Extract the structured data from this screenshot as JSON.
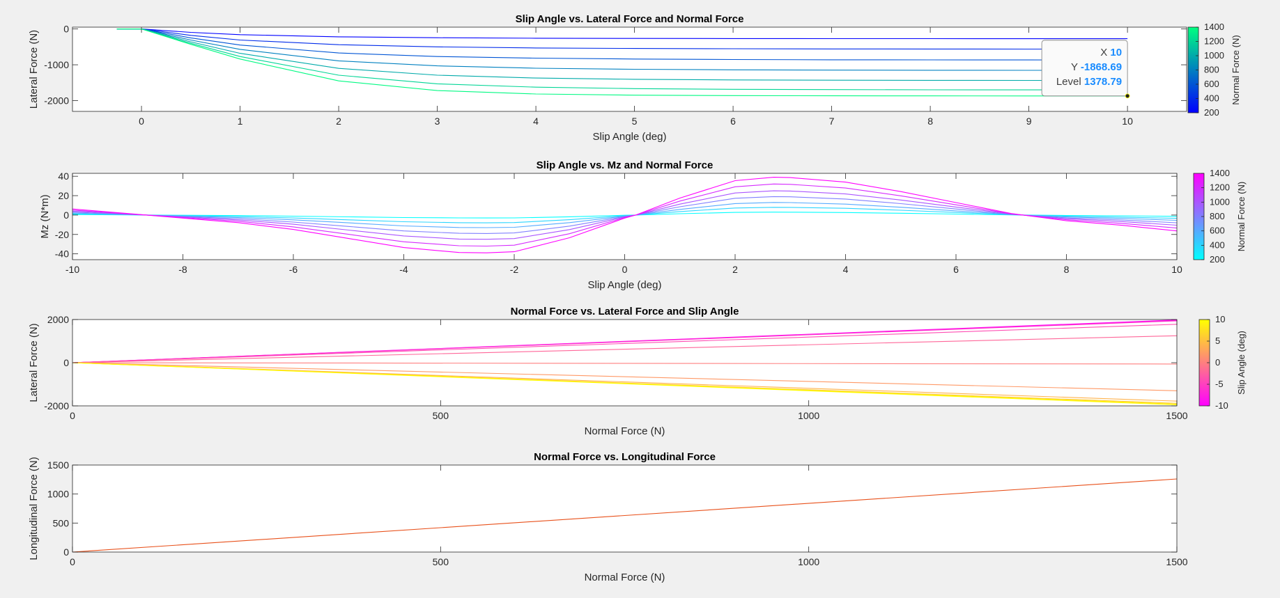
{
  "window": {
    "background": "#f0f0f0"
  },
  "chart_data": [
    {
      "type": "line",
      "title": "Slip Angle vs. Lateral Force and Normal Force",
      "xlabel": "Slip Angle (deg)",
      "ylabel": "Lateral Force (N)",
      "xlim": [
        -0.7,
        10.6
      ],
      "ylim": [
        -2300,
        50
      ],
      "xticks": [
        0,
        1,
        2,
        3,
        4,
        5,
        6,
        7,
        8,
        9,
        10
      ],
      "yticks": [
        0,
        -1000,
        -2000
      ],
      "colorbar": {
        "label": "Normal Force (N)",
        "range": [
          200,
          1400
        ],
        "ticks": [
          1400,
          1200,
          1000,
          800,
          600,
          400,
          200
        ],
        "colors": [
          "#00ff80",
          "#0000ff"
        ]
      },
      "series": [
        {
          "level": 200,
          "x": [
            -0.25,
            0,
            0.5,
            1,
            2,
            3,
            4,
            5,
            6,
            7,
            8,
            9,
            10
          ],
          "y": [
            0,
            0,
            -95,
            -160,
            -220,
            -245,
            -258,
            -264,
            -268,
            -270,
            -271,
            -272,
            -272
          ]
        },
        {
          "level": 400,
          "x": [
            -0.25,
            0,
            0.5,
            1,
            2,
            3,
            4,
            5,
            6,
            7,
            8,
            9,
            10
          ],
          "y": [
            0,
            0,
            -180,
            -310,
            -440,
            -500,
            -530,
            -545,
            -553,
            -557,
            -560,
            -561,
            -562
          ]
        },
        {
          "level": 600,
          "x": [
            -0.25,
            0,
            0.5,
            1,
            2,
            3,
            4,
            5,
            6,
            7,
            8,
            9,
            10
          ],
          "y": [
            0,
            0,
            -250,
            -450,
            -670,
            -770,
            -815,
            -840,
            -853,
            -860,
            -863,
            -865,
            -866
          ]
        },
        {
          "level": 800,
          "x": [
            -0.25,
            0,
            0.5,
            1,
            2,
            3,
            4,
            5,
            6,
            7,
            8,
            9,
            10
          ],
          "y": [
            0,
            0,
            -310,
            -570,
            -890,
            -1030,
            -1095,
            -1125,
            -1140,
            -1148,
            -1152,
            -1154,
            -1155
          ]
        },
        {
          "level": 1000,
          "x": [
            -0.25,
            0,
            0.5,
            1,
            2,
            3,
            4,
            5,
            6,
            7,
            8,
            9,
            10
          ],
          "y": [
            0,
            0,
            -360,
            -680,
            -1100,
            -1290,
            -1370,
            -1405,
            -1422,
            -1430,
            -1434,
            -1436,
            -1437
          ]
        },
        {
          "level": 1200,
          "x": [
            -0.25,
            0,
            0.5,
            1,
            2,
            3,
            4,
            5,
            6,
            7,
            8,
            9,
            10
          ],
          "y": [
            0,
            0,
            -400,
            -770,
            -1290,
            -1530,
            -1625,
            -1665,
            -1685,
            -1693,
            -1697,
            -1699,
            -1700
          ]
        },
        {
          "level": 1378.79,
          "x": [
            -0.25,
            0,
            0.5,
            1,
            2,
            3,
            4,
            5,
            6,
            7,
            8,
            9,
            10
          ],
          "y": [
            0,
            0,
            -430,
            -840,
            -1450,
            -1720,
            -1815,
            -1848,
            -1860,
            -1865,
            -1867,
            -1868,
            -1868.69
          ]
        }
      ],
      "datatip": {
        "x_label": "X",
        "x_value": "10",
        "y_label": "Y",
        "y_value": "-1868.69",
        "level_label": "Level",
        "level_value": "1378.79",
        "point": [
          10,
          -1868.69
        ]
      }
    },
    {
      "type": "line",
      "title": "Slip Angle vs. Mz and Normal Force",
      "xlabel": "Slip Angle (deg)",
      "ylabel": "Mz (N*m)",
      "xlim": [
        -10,
        10
      ],
      "ylim": [
        -46,
        43
      ],
      "xticks": [
        -10,
        -8,
        -6,
        -4,
        -2,
        0,
        2,
        4,
        6,
        8,
        10
      ],
      "yticks": [
        40,
        20,
        0,
        -20,
        -40
      ],
      "colorbar": {
        "label": "Normal Force (N)",
        "range": [
          200,
          1400
        ],
        "ticks": [
          1400,
          1200,
          1000,
          800,
          600,
          400,
          200
        ],
        "colors": [
          "#ff00ff",
          "#00ffff"
        ]
      },
      "shape": {
        "x": [
          -10,
          -9,
          -8,
          -7,
          -6,
          -5,
          -4,
          -3,
          -2.5,
          -2,
          -1,
          0,
          0.2,
          1,
          2,
          2.7,
          3,
          4,
          5,
          6,
          7,
          8,
          9,
          10
        ],
        "y": [
          0.16,
          0.04,
          -0.08,
          -0.2,
          -0.38,
          -0.62,
          -0.86,
          -0.99,
          -1.0,
          -0.97,
          -0.6,
          -0.08,
          0,
          0.45,
          0.91,
          1.0,
          0.99,
          0.87,
          0.62,
          0.33,
          0.04,
          -0.15,
          -0.27,
          -0.42
        ]
      },
      "series": [
        {
          "level": 200,
          "amplitude": 3
        },
        {
          "level": 400,
          "amplitude": 8
        },
        {
          "level": 600,
          "amplitude": 13
        },
        {
          "level": 800,
          "amplitude": 19
        },
        {
          "level": 1000,
          "amplitude": 25
        },
        {
          "level": 1200,
          "amplitude": 32
        },
        {
          "level": 1400,
          "amplitude": 39
        }
      ]
    },
    {
      "type": "line",
      "title": "Normal Force vs. Lateral Force and Slip Angle",
      "xlabel": "Normal Force (N)",
      "ylabel": "Lateral Force (N)",
      "xlim": [
        0,
        1500
      ],
      "ylim": [
        -2000,
        2000
      ],
      "xticks": [
        0,
        500,
        1000,
        1500
      ],
      "yticks": [
        2000,
        0,
        -2000
      ],
      "colorbar": {
        "label": "Slip Angle (deg)",
        "range": [
          -10,
          10
        ],
        "ticks": [
          10,
          5,
          0,
          -5,
          -10
        ],
        "colors": [
          "#ffff00",
          "#ff00ff"
        ]
      },
      "series": [
        {
          "level": -10,
          "x": [
            0,
            1500
          ],
          "y": [
            0,
            1980
          ]
        },
        {
          "level": -8,
          "x": [
            0,
            1500
          ],
          "y": [
            0,
            1960
          ]
        },
        {
          "level": -6,
          "x": [
            0,
            1500
          ],
          "y": [
            0,
            1940
          ]
        },
        {
          "level": -4,
          "x": [
            0,
            1500
          ],
          "y": [
            0,
            1780
          ]
        },
        {
          "level": -2,
          "x": [
            0,
            1500
          ],
          "y": [
            0,
            1250
          ]
        },
        {
          "level": 0,
          "x": [
            0,
            1500
          ],
          "y": [
            0,
            -60
          ]
        },
        {
          "level": 2,
          "x": [
            0,
            1500
          ],
          "y": [
            0,
            -1300
          ]
        },
        {
          "level": 4,
          "x": [
            0,
            1500
          ],
          "y": [
            0,
            -1780
          ]
        },
        {
          "level": 6,
          "x": [
            0,
            1500
          ],
          "y": [
            0,
            -1880
          ]
        },
        {
          "level": 8,
          "x": [
            0,
            1500
          ],
          "y": [
            0,
            -1920
          ]
        },
        {
          "level": 10,
          "x": [
            0,
            1500
          ],
          "y": [
            0,
            -1950
          ]
        }
      ]
    },
    {
      "type": "line",
      "title": "Normal Force vs. Longitudinal Force",
      "xlabel": "Normal Force (N)",
      "ylabel": "Longitudinal Force (N)",
      "xlim": [
        0,
        1500
      ],
      "ylim": [
        0,
        1500
      ],
      "xticks": [
        0,
        500,
        1000,
        1500
      ],
      "yticks": [
        1500,
        1000,
        500,
        0
      ],
      "series": [
        {
          "color": "#e8501a",
          "x": [
            0,
            1500
          ],
          "y": [
            0,
            1260
          ]
        }
      ]
    }
  ]
}
